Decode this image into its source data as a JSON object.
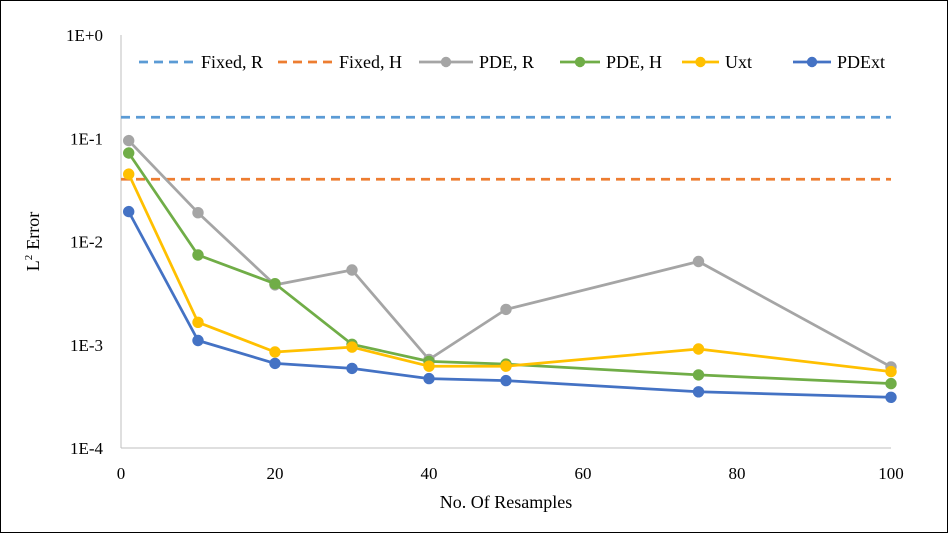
{
  "chart_data": {
    "type": "line",
    "xlabel": "No. Of Resamples",
    "ylabel": "Error",
    "ylabel_prefix": "L",
    "ylabel_sup": "2",
    "yscale": "log",
    "xlim": [
      0,
      100
    ],
    "ylim": [
      0.0001,
      1
    ],
    "x_ticks": [
      0,
      20,
      40,
      60,
      80,
      100
    ],
    "x_tick_labels": [
      "0",
      "20",
      "40",
      "60",
      "80",
      "100"
    ],
    "y_ticks": [
      1,
      0.1,
      0.01,
      0.001,
      0.0001
    ],
    "y_tick_labels": [
      "1E+0",
      "1E-1",
      "1E-2",
      "1E-3",
      "1E-4"
    ],
    "grid": false,
    "legend_position": "top",
    "series": [
      {
        "name": "Fixed, R",
        "color": "#5b9bd5",
        "style": "dashed",
        "markers": false,
        "x": [
          0,
          100
        ],
        "y": [
          0.16,
          0.16
        ]
      },
      {
        "name": "Fixed, H",
        "color": "#ed7d31",
        "style": "dashed",
        "markers": false,
        "x": [
          0,
          100
        ],
        "y": [
          0.04,
          0.04
        ]
      },
      {
        "name": "PDE, R",
        "color": "#a5a5a5",
        "style": "solid",
        "markers": true,
        "x": [
          1,
          10,
          20,
          30,
          40,
          50,
          75,
          100
        ],
        "y": [
          0.095,
          0.019,
          0.0038,
          0.0053,
          0.00072,
          0.0022,
          0.0064,
          0.00061
        ]
      },
      {
        "name": "PDE, H",
        "color": "#70ad47",
        "style": "solid",
        "markers": true,
        "x": [
          1,
          10,
          20,
          30,
          40,
          50,
          75,
          100
        ],
        "y": [
          0.072,
          0.0074,
          0.0039,
          0.00101,
          0.00069,
          0.00065,
          0.00051,
          0.00042
        ]
      },
      {
        "name": "Uxt",
        "color": "#ffc000",
        "style": "solid",
        "markers": true,
        "x": [
          1,
          10,
          20,
          30,
          40,
          50,
          75,
          100
        ],
        "y": [
          0.045,
          0.00165,
          0.00085,
          0.00095,
          0.00062,
          0.00062,
          0.00091,
          0.00055
        ]
      },
      {
        "name": "PDExt",
        "color": "#4472c4",
        "style": "solid",
        "markers": true,
        "x": [
          1,
          10,
          20,
          30,
          40,
          50,
          75,
          100
        ],
        "y": [
          0.0195,
          0.0011,
          0.00066,
          0.00059,
          0.00047,
          0.00045,
          0.00035,
          0.00031
        ]
      }
    ]
  }
}
